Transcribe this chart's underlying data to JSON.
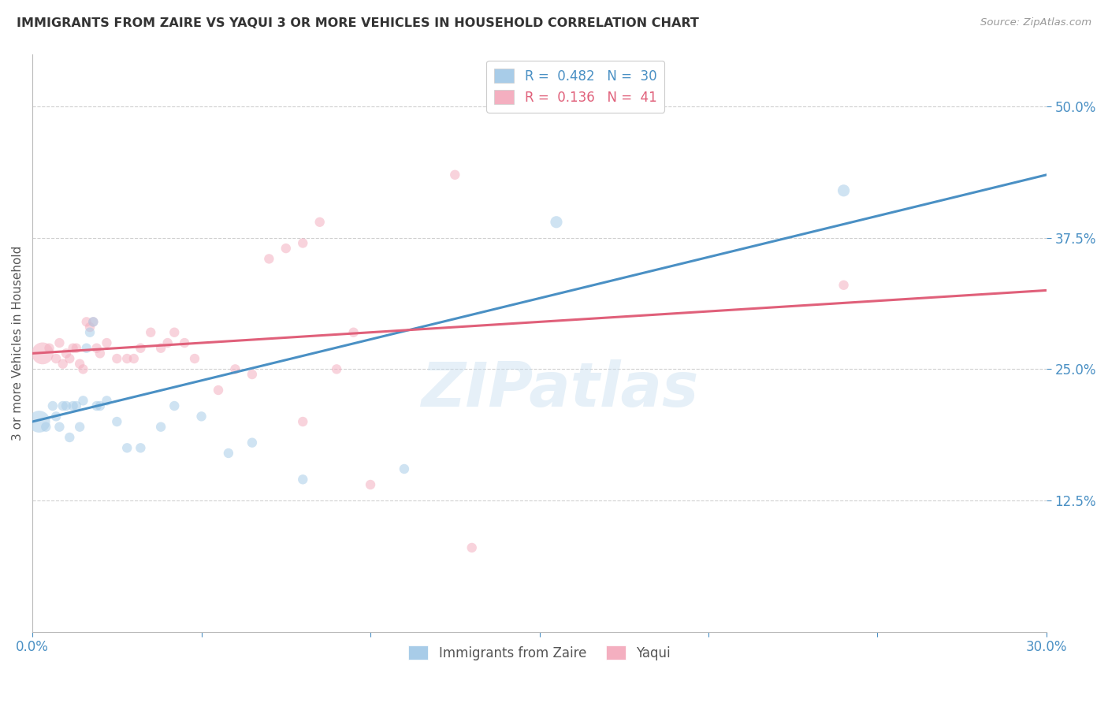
{
  "title": "IMMIGRANTS FROM ZAIRE VS YAQUI 3 OR MORE VEHICLES IN HOUSEHOLD CORRELATION CHART",
  "source_text": "Source: ZipAtlas.com",
  "ylabel": "3 or more Vehicles in Household",
  "xlim": [
    0.0,
    0.3
  ],
  "ylim": [
    0.0,
    0.55
  ],
  "xticks": [
    0.0,
    0.05,
    0.1,
    0.15,
    0.2,
    0.25,
    0.3
  ],
  "xtick_labels": [
    "0.0%",
    "",
    "",
    "",
    "",
    "",
    "30.0%"
  ],
  "ytick_labels": [
    "12.5%",
    "25.0%",
    "37.5%",
    "50.0%"
  ],
  "yticks": [
    0.125,
    0.25,
    0.375,
    0.5
  ],
  "blue_R": 0.482,
  "blue_N": 30,
  "pink_R": 0.136,
  "pink_N": 41,
  "blue_color": "#a8cce8",
  "pink_color": "#f4afc0",
  "blue_line_color": "#4a90c4",
  "pink_line_color": "#e0607a",
  "legend_label_blue": "Immigrants from Zaire",
  "legend_label_pink": "Yaqui",
  "blue_scatter_x": [
    0.002,
    0.004,
    0.006,
    0.007,
    0.008,
    0.009,
    0.01,
    0.011,
    0.012,
    0.013,
    0.014,
    0.015,
    0.016,
    0.017,
    0.018,
    0.019,
    0.02,
    0.022,
    0.025,
    0.028,
    0.032,
    0.038,
    0.042,
    0.05,
    0.058,
    0.065,
    0.08,
    0.11,
    0.155,
    0.24
  ],
  "blue_scatter_y": [
    0.2,
    0.195,
    0.215,
    0.205,
    0.195,
    0.215,
    0.215,
    0.185,
    0.215,
    0.215,
    0.195,
    0.22,
    0.27,
    0.285,
    0.295,
    0.215,
    0.215,
    0.22,
    0.2,
    0.175,
    0.175,
    0.195,
    0.215,
    0.205,
    0.17,
    0.18,
    0.145,
    0.155,
    0.39,
    0.42
  ],
  "pink_scatter_x": [
    0.003,
    0.005,
    0.007,
    0.008,
    0.009,
    0.01,
    0.011,
    0.012,
    0.013,
    0.014,
    0.015,
    0.016,
    0.017,
    0.018,
    0.019,
    0.02,
    0.022,
    0.025,
    0.028,
    0.03,
    0.032,
    0.035,
    0.038,
    0.04,
    0.042,
    0.045,
    0.048,
    0.055,
    0.06,
    0.065,
    0.07,
    0.075,
    0.08,
    0.085,
    0.09,
    0.095,
    0.1,
    0.125,
    0.08,
    0.24,
    0.13
  ],
  "pink_scatter_y": [
    0.265,
    0.27,
    0.26,
    0.275,
    0.255,
    0.265,
    0.26,
    0.27,
    0.27,
    0.255,
    0.25,
    0.295,
    0.29,
    0.295,
    0.27,
    0.265,
    0.275,
    0.26,
    0.26,
    0.26,
    0.27,
    0.285,
    0.27,
    0.275,
    0.285,
    0.275,
    0.26,
    0.23,
    0.25,
    0.245,
    0.355,
    0.365,
    0.37,
    0.39,
    0.25,
    0.285,
    0.14,
    0.435,
    0.2,
    0.33,
    0.08
  ],
  "blue_marker_sizes": [
    400,
    80,
    80,
    80,
    80,
    80,
    80,
    80,
    80,
    80,
    80,
    80,
    80,
    80,
    80,
    80,
    80,
    80,
    80,
    80,
    80,
    80,
    80,
    80,
    80,
    80,
    80,
    80,
    120,
    120
  ],
  "pink_marker_sizes": [
    400,
    80,
    80,
    80,
    80,
    80,
    80,
    80,
    80,
    80,
    80,
    80,
    80,
    80,
    80,
    80,
    80,
    80,
    80,
    80,
    80,
    80,
    80,
    80,
    80,
    80,
    80,
    80,
    80,
    80,
    80,
    80,
    80,
    80,
    80,
    80,
    80,
    80,
    80,
    80,
    80
  ],
  "watermark": "ZIPatlas",
  "background_color": "#ffffff",
  "grid_color": "#d0d0d0",
  "blue_line_y0": 0.2,
  "blue_line_y1": 0.435,
  "pink_line_y0": 0.265,
  "pink_line_y1": 0.325
}
